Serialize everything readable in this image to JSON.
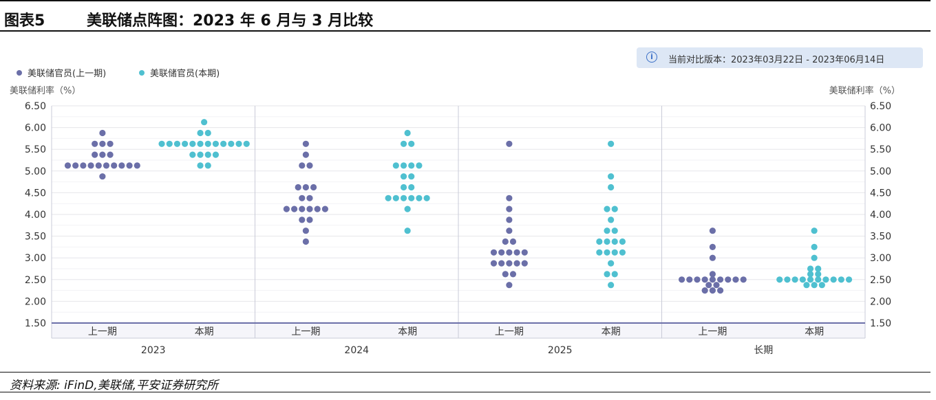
{
  "header": {
    "figure_number": "图表5",
    "title": "美联储点阵图：2023 年 6 月与 3 月比较"
  },
  "version_box": {
    "icon": "info-icon",
    "text": "当前对比版本：2023年03月22日 - 2023年06月14日"
  },
  "footer": {
    "source": "资料来源: iFinD,美联储,平安证券研究所"
  },
  "chart_data": {
    "type": "scatter",
    "title": "",
    "ylabel_left": "美联储利率（%）",
    "ylabel_right": "美联储利率（%）",
    "ylim": [
      1.5,
      6.5
    ],
    "yticks": [
      "1.50",
      "2.00",
      "2.50",
      "3.00",
      "3.50",
      "4.00",
      "4.50",
      "5.00",
      "5.50",
      "6.00",
      "6.50"
    ],
    "grid": true,
    "legend_position": "top-left",
    "colors": {
      "previous": "#6b6fa8",
      "current": "#4fc0d0"
    },
    "series": [
      {
        "name": "美联储官员(上一期)",
        "key": "previous"
      },
      {
        "name": "美联储官员(本期)",
        "key": "current"
      }
    ],
    "groups": [
      {
        "label": "2023",
        "subgroups": [
          {
            "label": "上一期",
            "series": "previous",
            "dots": [
              [
                5.875,
                1
              ],
              [
                5.625,
                3
              ],
              [
                5.375,
                3
              ],
              [
                5.125,
                10
              ],
              [
                4.875,
                1
              ]
            ]
          },
          {
            "label": "本期",
            "series": "current",
            "dots": [
              [
                6.125,
                1
              ],
              [
                5.875,
                2
              ],
              [
                5.625,
                12
              ],
              [
                5.375,
                4
              ],
              [
                5.125,
                2
              ]
            ]
          }
        ]
      },
      {
        "label": "2024",
        "subgroups": [
          {
            "label": "上一期",
            "series": "previous",
            "dots": [
              [
                5.625,
                1
              ],
              [
                5.375,
                1
              ],
              [
                5.125,
                2
              ],
              [
                4.625,
                3
              ],
              [
                4.375,
                2
              ],
              [
                4.125,
                6
              ],
              [
                3.875,
                2
              ],
              [
                3.625,
                1
              ],
              [
                3.375,
                1
              ]
            ]
          },
          {
            "label": "本期",
            "series": "current",
            "dots": [
              [
                5.875,
                1
              ],
              [
                5.625,
                2
              ],
              [
                5.125,
                4
              ],
              [
                4.875,
                2
              ],
              [
                4.625,
                2
              ],
              [
                4.375,
                6
              ],
              [
                4.125,
                1
              ],
              [
                3.625,
                1
              ]
            ]
          }
        ]
      },
      {
        "label": "2025",
        "subgroups": [
          {
            "label": "上一期",
            "series": "previous",
            "dots": [
              [
                5.625,
                1
              ],
              [
                4.375,
                1
              ],
              [
                4.125,
                1
              ],
              [
                3.875,
                1
              ],
              [
                3.625,
                1
              ],
              [
                3.375,
                2
              ],
              [
                3.125,
                5
              ],
              [
                2.875,
                5
              ],
              [
                2.625,
                2
              ],
              [
                2.375,
                1
              ]
            ]
          },
          {
            "label": "本期",
            "series": "current",
            "dots": [
              [
                5.625,
                1
              ],
              [
                4.875,
                1
              ],
              [
                4.625,
                1
              ],
              [
                4.125,
                2
              ],
              [
                3.875,
                1
              ],
              [
                3.625,
                2
              ],
              [
                3.375,
                4
              ],
              [
                3.125,
                4
              ],
              [
                2.875,
                1
              ],
              [
                2.625,
                2
              ],
              [
                2.375,
                1
              ]
            ]
          }
        ]
      },
      {
        "label": "长期",
        "subgroups": [
          {
            "label": "上一期",
            "series": "previous",
            "dots": [
              [
                3.625,
                1
              ],
              [
                3.25,
                1
              ],
              [
                3.0,
                1
              ],
              [
                2.625,
                1
              ],
              [
                2.5,
                9
              ],
              [
                2.375,
                2
              ],
              [
                2.25,
                3
              ]
            ]
          },
          {
            "label": "本期",
            "series": "current",
            "dots": [
              [
                3.625,
                1
              ],
              [
                3.25,
                1
              ],
              [
                3.0,
                1
              ],
              [
                2.75,
                2
              ],
              [
                2.625,
                2
              ],
              [
                2.5,
                10
              ],
              [
                2.375,
                3
              ]
            ]
          }
        ]
      }
    ]
  }
}
